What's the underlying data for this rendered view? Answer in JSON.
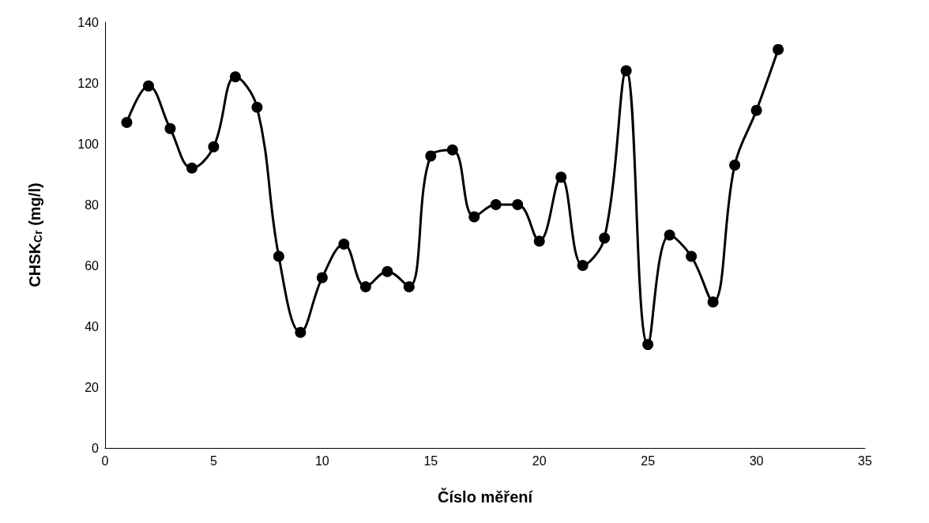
{
  "chart_data": {
    "type": "line",
    "xlabel": "Číslo měření",
    "ylabel": "CHSK$_{Cr}$ (mg/l)",
    "x": [
      1,
      2,
      3,
      4,
      5,
      6,
      7,
      8,
      9,
      10,
      11,
      12,
      13,
      14,
      15,
      16,
      17,
      18,
      19,
      20,
      21,
      22,
      23,
      24,
      25,
      26,
      27,
      28,
      29,
      30,
      31
    ],
    "series": [
      {
        "color": "#000000",
        "values": [
          107,
          119,
          105,
          92,
          99,
          122,
          112,
          63,
          38,
          56,
          67,
          53,
          58,
          53,
          96,
          98,
          76,
          80,
          80,
          68,
          89,
          60,
          69,
          124,
          34,
          70,
          63,
          48,
          93,
          111,
          131
        ]
      }
    ],
    "xlim": [
      0,
      35
    ],
    "xticks": [
      0,
      5,
      10,
      15,
      20,
      25,
      30,
      35
    ],
    "ylim": [
      0,
      140
    ],
    "yticks": [
      0,
      20,
      40,
      60,
      80,
      100,
      120,
      140
    ],
    "grid": false,
    "marker": "circle",
    "line_style": "solid"
  }
}
